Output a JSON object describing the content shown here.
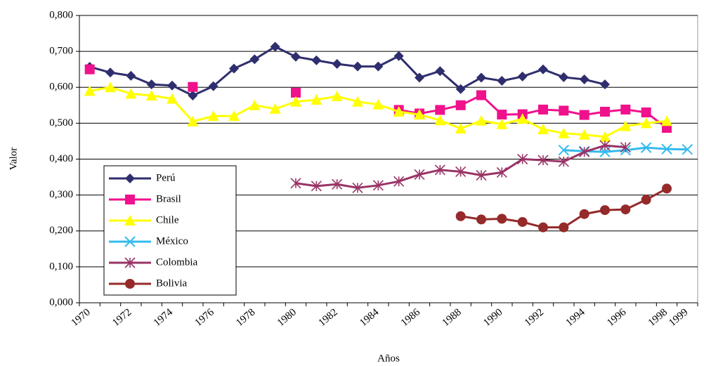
{
  "chart_data": {
    "type": "line",
    "x_label": "Años",
    "y_label": "Valor",
    "categories": [
      "1970",
      null,
      "1972",
      null,
      "1974",
      null,
      "1976",
      null,
      "1978",
      null,
      "1980",
      null,
      "1982",
      null,
      "1984",
      null,
      "1986",
      null,
      "1988",
      null,
      "1990",
      null,
      "1992",
      null,
      "1994",
      null,
      "1996",
      null,
      "1998",
      "1999"
    ],
    "ylim": [
      0,
      0.8
    ],
    "yticks": [
      {
        "value": 0,
        "label": "0,000"
      },
      {
        "value": 0.1,
        "label": "0,100"
      },
      {
        "value": 0.2,
        "label": "0,200"
      },
      {
        "value": 0.3,
        "label": "0,300"
      },
      {
        "value": 0.4,
        "label": "0,400"
      },
      {
        "value": 0.5,
        "label": "0,500"
      },
      {
        "value": 0.6,
        "label": "0,600"
      },
      {
        "value": 0.7,
        "label": "0,700"
      },
      {
        "value": 0.8,
        "label": "0,800"
      }
    ],
    "grid": true,
    "legend": "left",
    "series": [
      {
        "name": "Perú",
        "color": "#2e2e6e",
        "marker": "diamond",
        "values": [
          0.657,
          0.641,
          0.632,
          0.608,
          0.605,
          0.577,
          0.603,
          0.652,
          0.678,
          0.713,
          0.685,
          0.675,
          0.665,
          0.658,
          0.658,
          0.687,
          0.627,
          0.645,
          0.595,
          0.627,
          0.618,
          0.63,
          0.65,
          0.628,
          0.622,
          0.608,
          null,
          null,
          null,
          null
        ]
      },
      {
        "name": "Brasil",
        "color": "#f0118c",
        "marker": "square",
        "values": [
          0.65,
          null,
          null,
          null,
          null,
          0.601,
          null,
          null,
          null,
          null,
          0.585,
          null,
          null,
          null,
          null,
          0.537,
          0.527,
          0.537,
          0.55,
          0.578,
          0.524,
          0.525,
          0.538,
          0.535,
          0.523,
          0.532,
          0.538,
          0.53,
          0.487,
          null
        ]
      },
      {
        "name": "Chile",
        "color": "#ffff00",
        "marker": "triangle",
        "values": [
          0.59,
          0.6,
          0.582,
          0.577,
          0.568,
          0.505,
          0.52,
          0.52,
          0.55,
          0.54,
          0.56,
          0.565,
          0.575,
          0.56,
          0.552,
          0.532,
          0.524,
          0.508,
          0.485,
          0.507,
          0.497,
          0.512,
          0.483,
          0.472,
          0.468,
          0.462,
          0.492,
          0.5,
          0.506,
          null
        ]
      },
      {
        "name": "México",
        "color": "#33bbee",
        "marker": "x",
        "values": [
          null,
          null,
          null,
          null,
          null,
          null,
          null,
          null,
          null,
          null,
          null,
          null,
          null,
          null,
          null,
          null,
          null,
          null,
          null,
          null,
          null,
          null,
          null,
          0.425,
          0.422,
          0.42,
          0.425,
          0.432,
          0.428,
          0.427
        ]
      },
      {
        "name": "Colombia",
        "color": "#993366",
        "marker": "asterisk",
        "values": [
          null,
          null,
          null,
          null,
          null,
          null,
          null,
          null,
          null,
          null,
          0.333,
          0.325,
          0.33,
          0.32,
          0.327,
          0.338,
          0.357,
          0.37,
          0.365,
          0.355,
          0.363,
          0.4,
          0.397,
          0.393,
          0.42,
          0.438,
          0.433,
          null,
          null,
          null
        ]
      },
      {
        "name": "Bolivia",
        "color": "#952a2a",
        "marker": "circle",
        "values": [
          null,
          null,
          null,
          null,
          null,
          null,
          null,
          null,
          null,
          null,
          null,
          null,
          null,
          null,
          null,
          null,
          null,
          null,
          0.241,
          0.232,
          0.234,
          0.225,
          0.21,
          0.21,
          0.247,
          0.258,
          0.26,
          0.287,
          0.318,
          null
        ]
      }
    ]
  }
}
